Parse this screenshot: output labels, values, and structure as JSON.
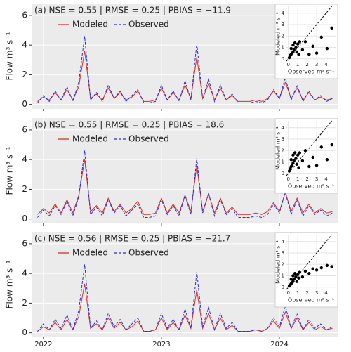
{
  "chart_data": [
    {
      "type": "line",
      "title": "(a)  NSE = 0.55 | RMSE = 0.25 | PBIAS = −11.9",
      "y_label": "Flow m³ s⁻¹",
      "x": [
        2021.95,
        2022.0,
        2022.05,
        2022.1,
        2022.15,
        2022.2,
        2022.25,
        2022.3,
        2022.35,
        2022.4,
        2022.45,
        2022.5,
        2022.55,
        2022.6,
        2022.65,
        2022.7,
        2022.75,
        2022.8,
        2022.85,
        2022.9,
        2022.95,
        2023.0,
        2023.05,
        2023.1,
        2023.15,
        2023.2,
        2023.25,
        2023.3,
        2023.35,
        2023.4,
        2023.45,
        2023.5,
        2023.55,
        2023.6,
        2023.65,
        2023.7,
        2023.75,
        2023.8,
        2023.85,
        2023.9,
        2023.95,
        2024.0,
        2024.05,
        2024.1,
        2024.15,
        2024.2,
        2024.25,
        2024.3,
        2024.35,
        2024.4,
        2024.45
      ],
      "xlim": [
        2021.9,
        2024.5
      ],
      "xticks": [
        2022,
        2023,
        2024
      ],
      "ylim": [
        -0.3,
        6.8
      ],
      "yticks": [
        0,
        2,
        4,
        6
      ],
      "grid": true,
      "show_x_labels": false,
      "series": [
        {
          "name": "Modeled",
          "color": "#d2322d",
          "dash": false,
          "values": [
            0.2,
            0.5,
            0.3,
            0.8,
            0.3,
            1.0,
            0.3,
            1.2,
            3.6,
            0.4,
            0.7,
            0.3,
            1.1,
            0.4,
            0.8,
            0.3,
            0.5,
            0.9,
            0.2,
            0.2,
            0.3,
            1.1,
            0.3,
            0.8,
            0.3,
            1.3,
            0.4,
            3.2,
            0.4,
            1.4,
            0.3,
            1.1,
            0.3,
            0.6,
            0.2,
            0.2,
            0.2,
            0.3,
            0.2,
            0.4,
            0.9,
            0.4,
            1.5,
            0.4,
            1.1,
            0.3,
            0.8,
            0.3,
            0.5,
            0.3,
            0.4
          ]
        },
        {
          "name": "Observed",
          "color": "#2b2bd6",
          "dash": true,
          "values": [
            0.1,
            0.6,
            0.2,
            0.9,
            0.3,
            1.2,
            0.2,
            1.5,
            4.6,
            0.3,
            0.8,
            0.2,
            1.3,
            0.4,
            0.9,
            0.2,
            0.6,
            1.0,
            0.1,
            0.1,
            0.2,
            1.3,
            0.3,
            0.9,
            0.2,
            1.6,
            0.3,
            4.1,
            0.4,
            1.7,
            0.2,
            1.3,
            0.3,
            0.7,
            0.1,
            0.1,
            0.1,
            0.2,
            0.1,
            0.3,
            1.0,
            0.4,
            1.8,
            0.3,
            1.3,
            0.2,
            0.9,
            0.3,
            0.6,
            0.2,
            0.4
          ]
        }
      ],
      "inset": {
        "type": "scatter",
        "x_label": "Observed m³ s⁻¹",
        "y_label": "Modeled m³ s⁻¹",
        "xlim": [
          -0.2,
          5
        ],
        "ylim": [
          -0.2,
          4.6
        ],
        "xticks": [
          0,
          1,
          2,
          3,
          4
        ],
        "yticks": [
          0,
          1,
          2,
          3,
          4
        ],
        "color": "#000000",
        "x": [
          0.1,
          0.2,
          0.3,
          0.4,
          0.5,
          0.6,
          0.8,
          1.0,
          1.2,
          0.3,
          0.5,
          0.9,
          1.5,
          1.8,
          2.2,
          2.6,
          3.0,
          3.5,
          4.1,
          4.6,
          0.7,
          1.1
        ],
        "y": [
          0.1,
          0.3,
          0.4,
          0.5,
          0.6,
          0.8,
          1.0,
          1.3,
          1.5,
          0.9,
          1.2,
          0.6,
          0.8,
          1.5,
          0.4,
          1.1,
          0.5,
          1.9,
          0.9,
          2.7,
          1.4,
          0.4
        ]
      }
    },
    {
      "type": "line",
      "title": "(b)  NSE = 0.55 | RMSE = 0.25 | PBIAS = 18.6",
      "y_label": "Flow m³ s⁻¹",
      "x": [
        2021.95,
        2022.0,
        2022.05,
        2022.1,
        2022.15,
        2022.2,
        2022.25,
        2022.3,
        2022.35,
        2022.4,
        2022.45,
        2022.5,
        2022.55,
        2022.6,
        2022.65,
        2022.7,
        2022.75,
        2022.8,
        2022.85,
        2022.9,
        2022.95,
        2023.0,
        2023.05,
        2023.1,
        2023.15,
        2023.2,
        2023.25,
        2023.3,
        2023.35,
        2023.4,
        2023.45,
        2023.5,
        2023.55,
        2023.6,
        2023.65,
        2023.7,
        2023.75,
        2023.8,
        2023.85,
        2023.9,
        2023.95,
        2024.0,
        2024.05,
        2024.1,
        2024.15,
        2024.2,
        2024.25,
        2024.3,
        2024.35,
        2024.4,
        2024.45
      ],
      "xlim": [
        2021.9,
        2024.5
      ],
      "xticks": [
        2022,
        2023,
        2024
      ],
      "ylim": [
        -0.3,
        6.8
      ],
      "yticks": [
        0,
        2,
        4,
        6
      ],
      "grid": true,
      "show_x_labels": false,
      "series": [
        {
          "name": "Modeled",
          "color": "#d2322d",
          "dash": false,
          "values": [
            0.3,
            0.7,
            0.4,
            1.0,
            0.4,
            1.3,
            0.4,
            1.6,
            4.0,
            0.5,
            0.9,
            0.4,
            1.4,
            0.5,
            1.0,
            0.4,
            0.7,
            1.2,
            0.3,
            0.3,
            0.4,
            1.4,
            0.4,
            1.0,
            0.4,
            1.6,
            0.5,
            3.6,
            0.5,
            1.7,
            0.4,
            1.4,
            0.4,
            0.8,
            0.3,
            0.3,
            0.3,
            0.4,
            0.3,
            0.5,
            1.1,
            0.5,
            1.8,
            0.5,
            1.4,
            0.4,
            1.0,
            0.4,
            0.7,
            0.4,
            0.5
          ]
        },
        {
          "name": "Observed",
          "color": "#2b2bd6",
          "dash": true,
          "values": [
            0.1,
            0.6,
            0.2,
            0.9,
            0.3,
            1.2,
            0.2,
            1.5,
            4.6,
            0.3,
            0.8,
            0.2,
            1.3,
            0.4,
            0.9,
            0.2,
            0.6,
            1.0,
            0.1,
            0.1,
            0.2,
            1.3,
            0.3,
            0.9,
            0.2,
            1.6,
            0.3,
            4.1,
            0.4,
            1.7,
            0.2,
            1.3,
            0.3,
            0.7,
            0.1,
            0.1,
            0.1,
            0.2,
            0.1,
            0.3,
            1.0,
            0.4,
            1.8,
            0.3,
            1.3,
            0.2,
            0.9,
            0.3,
            0.6,
            0.2,
            0.4
          ]
        }
      ],
      "inset": {
        "type": "scatter",
        "x_label": "Observed m³ s⁻¹",
        "y_label": "Modeled m³ s⁻¹",
        "xlim": [
          -0.2,
          5
        ],
        "ylim": [
          -0.2,
          4.6
        ],
        "xticks": [
          0,
          1,
          2,
          3,
          4
        ],
        "yticks": [
          0,
          1,
          2,
          3,
          4
        ],
        "color": "#000000",
        "x": [
          0.1,
          0.2,
          0.3,
          0.4,
          0.5,
          0.6,
          0.8,
          1.0,
          1.2,
          0.3,
          0.5,
          0.9,
          1.5,
          1.8,
          2.2,
          2.6,
          3.0,
          3.5,
          4.1,
          4.6,
          0.7,
          1.1
        ],
        "y": [
          0.2,
          0.4,
          0.6,
          0.7,
          0.9,
          1.1,
          1.3,
          1.6,
          1.8,
          1.2,
          1.6,
          0.8,
          1.1,
          2.0,
          0.6,
          1.4,
          0.7,
          2.3,
          1.2,
          2.5,
          1.8,
          0.5
        ]
      }
    },
    {
      "type": "line",
      "title": "(c)  NSE = 0.56 | RMSE = 0.25 | PBIAS = −21.7",
      "y_label": "Flow m³ s⁻¹",
      "x": [
        2021.95,
        2022.0,
        2022.05,
        2022.1,
        2022.15,
        2022.2,
        2022.25,
        2022.3,
        2022.35,
        2022.4,
        2022.45,
        2022.5,
        2022.55,
        2022.6,
        2022.65,
        2022.7,
        2022.75,
        2022.8,
        2022.85,
        2022.9,
        2022.95,
        2023.0,
        2023.05,
        2023.1,
        2023.15,
        2023.2,
        2023.25,
        2023.3,
        2023.35,
        2023.4,
        2023.45,
        2023.5,
        2023.55,
        2023.6,
        2023.65,
        2023.7,
        2023.75,
        2023.8,
        2023.85,
        2023.9,
        2023.95,
        2024.0,
        2024.05,
        2024.1,
        2024.15,
        2024.2,
        2024.25,
        2024.3,
        2024.35,
        2024.4,
        2024.45
      ],
      "xlim": [
        2021.9,
        2024.5
      ],
      "xticks": [
        2022,
        2023,
        2024
      ],
      "ylim": [
        -0.3,
        6.8
      ],
      "yticks": [
        0,
        2,
        4,
        6
      ],
      "grid": true,
      "show_x_labels": true,
      "series": [
        {
          "name": "Modeled",
          "color": "#d2322d",
          "dash": false,
          "values": [
            0.1,
            0.4,
            0.2,
            0.7,
            0.2,
            0.9,
            0.2,
            1.1,
            3.3,
            0.3,
            0.6,
            0.2,
            1.0,
            0.3,
            0.7,
            0.2,
            0.4,
            0.8,
            0.1,
            0.1,
            0.2,
            1.0,
            0.2,
            0.7,
            0.2,
            1.2,
            0.3,
            2.9,
            0.3,
            1.3,
            0.2,
            1.0,
            0.2,
            0.5,
            0.1,
            0.1,
            0.1,
            0.2,
            0.1,
            0.3,
            0.8,
            0.3,
            1.4,
            0.3,
            1.0,
            0.2,
            0.7,
            0.2,
            0.4,
            0.2,
            0.3
          ]
        },
        {
          "name": "Observed",
          "color": "#2b2bd6",
          "dash": true,
          "values": [
            0.1,
            0.6,
            0.2,
            0.9,
            0.3,
            1.2,
            0.2,
            1.5,
            4.6,
            0.3,
            0.8,
            0.2,
            1.3,
            0.4,
            0.9,
            0.2,
            0.6,
            1.0,
            0.1,
            0.1,
            0.2,
            1.3,
            0.3,
            0.9,
            0.2,
            1.6,
            0.3,
            4.1,
            0.4,
            1.7,
            0.2,
            1.3,
            0.3,
            0.7,
            0.1,
            0.1,
            0.1,
            0.2,
            0.1,
            0.3,
            1.0,
            0.4,
            1.8,
            0.3,
            1.3,
            0.2,
            0.9,
            0.3,
            0.6,
            0.2,
            0.4
          ]
        }
      ],
      "inset": {
        "type": "scatter",
        "x_label": "Observed m³ s⁻¹",
        "y_label": "Modeled m³ s⁻¹",
        "xlim": [
          -0.2,
          5
        ],
        "ylim": [
          -0.2,
          4.6
        ],
        "xticks": [
          0,
          1,
          2,
          3,
          4
        ],
        "yticks": [
          0,
          1,
          2,
          3,
          4
        ],
        "color": "#000000",
        "x": [
          0.1,
          0.2,
          0.3,
          0.4,
          0.5,
          0.6,
          0.8,
          1.0,
          1.2,
          0.3,
          0.5,
          0.9,
          1.5,
          1.8,
          2.2,
          2.6,
          3.0,
          3.5,
          4.1,
          4.6,
          0.7,
          1.1
        ],
        "y": [
          0.1,
          0.2,
          0.3,
          0.4,
          0.5,
          0.7,
          0.9,
          1.1,
          1.3,
          0.7,
          1.0,
          0.5,
          0.9,
          1.4,
          1.2,
          1.6,
          1.5,
          1.7,
          1.9,
          1.8,
          1.2,
          0.8
        ]
      }
    }
  ]
}
